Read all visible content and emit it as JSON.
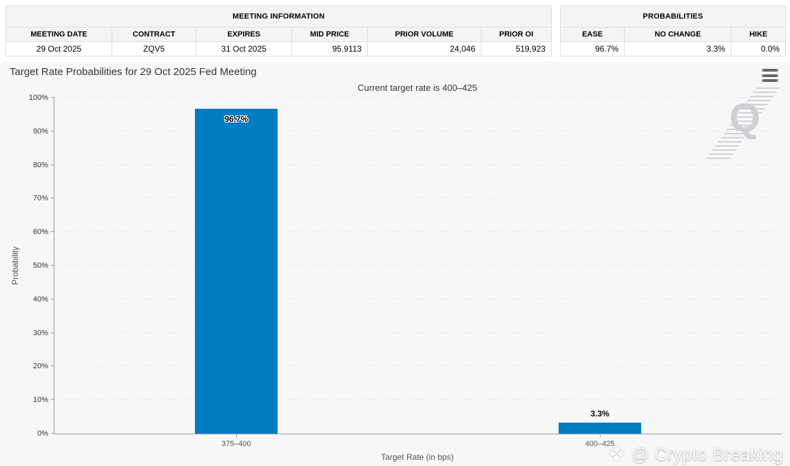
{
  "meeting_table": {
    "title": "MEETING INFORMATION",
    "headers": [
      "MEETING DATE",
      "CONTRACT",
      "EXPIRES",
      "MID PRICE",
      "PRIOR VOLUME",
      "PRIOR OI"
    ],
    "row": [
      "29 Oct 2025",
      "ZQV5",
      "31 Oct 2025",
      "95.9113",
      "24,046",
      "519,923"
    ]
  },
  "probabilities_table": {
    "title": "PROBABILITIES",
    "headers": [
      "EASE",
      "NO CHANGE",
      "HIKE"
    ],
    "row": [
      "96.7%",
      "3.3%",
      "0.0%"
    ]
  },
  "chart_data": {
    "type": "bar",
    "title": "Target Rate Probabilities for 29 Oct 2025 Fed Meeting",
    "subtitle": "Current target rate is 400–425",
    "categories": [
      "375–400",
      "400–425"
    ],
    "values": [
      96.7,
      3.3
    ],
    "value_labels": [
      "96.7%",
      "3.3%"
    ],
    "xlabel": "Target Rate (in bps)",
    "ylabel": "Probability",
    "ylim": [
      0,
      100
    ],
    "ytick_step": 10,
    "ytick_suffix": "%",
    "grid": "horizontal dotted",
    "legend": "none",
    "bar_color": "#007dc1"
  },
  "icons": {
    "menu": "hamburger-menu-icon",
    "brand_diamond": "❖"
  },
  "watermarks": {
    "corner_letter": "Q",
    "brand": "@ Crypto Breaking"
  }
}
